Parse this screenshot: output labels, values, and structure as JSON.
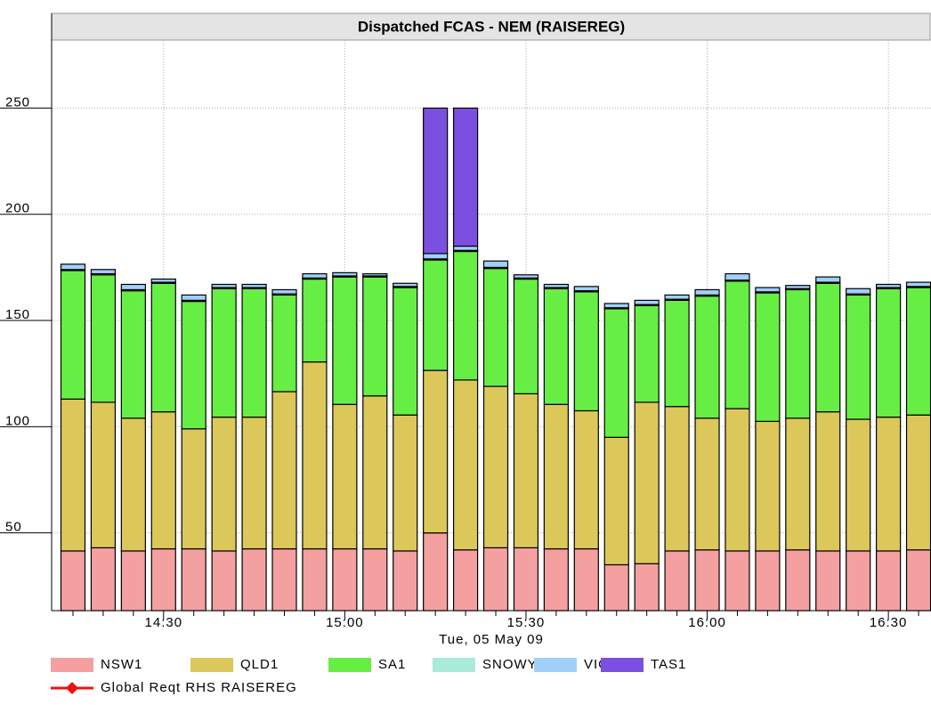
{
  "chart_data": {
    "type": "stacked_bar",
    "title": "Dispatched FCAS - NEM (RAISEREG)",
    "xlabel": "Tue, 05 May 09",
    "categories": [
      null,
      null,
      null,
      "14:30",
      null,
      null,
      null,
      null,
      null,
      "15:00",
      null,
      null,
      null,
      null,
      null,
      "15:30",
      null,
      null,
      null,
      null,
      null,
      "16:00",
      null,
      null,
      null,
      null,
      null,
      "16:30",
      null
    ],
    "ylim": [
      13.4,
      294.6
    ],
    "yticks": [
      50,
      100,
      150,
      200,
      250
    ],
    "grid": true,
    "series": [
      {
        "name": "NSW1",
        "color": "#f4a0a0",
        "values": [
          41.5,
          43,
          41.5,
          42.5,
          42.5,
          41.5,
          42.5,
          42.5,
          42.5,
          42.5,
          42.5,
          41.5,
          50,
          42,
          43,
          43,
          42.5,
          42.5,
          35,
          35.5,
          41.5,
          42,
          41.5,
          41.5,
          42,
          41.5,
          41.5,
          41.5,
          42
        ]
      },
      {
        "name": "QLD1",
        "color": "#dcc85a",
        "values": [
          71.5,
          68.5,
          62.5,
          64.5,
          56.5,
          63,
          62,
          74,
          88,
          68,
          72,
          64,
          76.5,
          80,
          76,
          72.5,
          68,
          65,
          60,
          76,
          68,
          62,
          67,
          61,
          62,
          65.5,
          62,
          63,
          63.5
        ]
      },
      {
        "name": "SA1",
        "color": "#66ee44",
        "values": [
          60.5,
          60,
          60,
          60.5,
          60,
          60.5,
          60.5,
          45.5,
          39,
          60,
          56,
          60,
          52,
          60.5,
          55.5,
          54,
          54.5,
          56,
          60.5,
          45.5,
          50,
          57.5,
          60,
          60.5,
          60.5,
          60.5,
          58.5,
          60.5,
          60
        ]
      },
      {
        "name": "SNOWY1",
        "color": "#a8ecd8",
        "values": [
          0.5,
          0.5,
          0.5,
          0.5,
          0.5,
          0.5,
          0.5,
          0.5,
          0.5,
          0.5,
          0.5,
          0.5,
          0.5,
          0.5,
          0.5,
          0.5,
          0.5,
          0.5,
          0.5,
          0.5,
          0.5,
          0.5,
          0.5,
          0.5,
          0.5,
          0.5,
          0.5,
          0.5,
          0.5
        ]
      },
      {
        "name": "VIC1",
        "color": "#a0d0f8",
        "values": [
          2.5,
          2,
          2.5,
          1.5,
          2.5,
          1.5,
          1.5,
          2,
          2,
          1.5,
          1,
          1.5,
          2.5,
          2,
          3,
          1.5,
          1.5,
          2,
          2,
          2,
          2,
          2.5,
          3,
          2,
          1.5,
          2.5,
          2.5,
          1.5,
          2
        ]
      },
      {
        "name": "TAS1",
        "color": "#7b50e0",
        "values": [
          0,
          0,
          0,
          0,
          0,
          0,
          0,
          0,
          0,
          0,
          0,
          0,
          68.5,
          65,
          0,
          0,
          0,
          0,
          0,
          0,
          0,
          0,
          0,
          0,
          0,
          0,
          0,
          0,
          0
        ]
      },
      {
        "name": "Global Reqt RHS RAISEREG",
        "color": "#ee1111",
        "type": "line",
        "values": [
          null,
          null,
          null,
          null,
          null,
          null,
          null,
          null,
          null,
          null,
          null,
          null,
          null,
          null,
          null,
          null,
          null,
          null,
          null,
          null,
          null,
          null,
          null,
          null,
          null,
          null,
          null,
          null,
          null
        ]
      }
    ]
  }
}
